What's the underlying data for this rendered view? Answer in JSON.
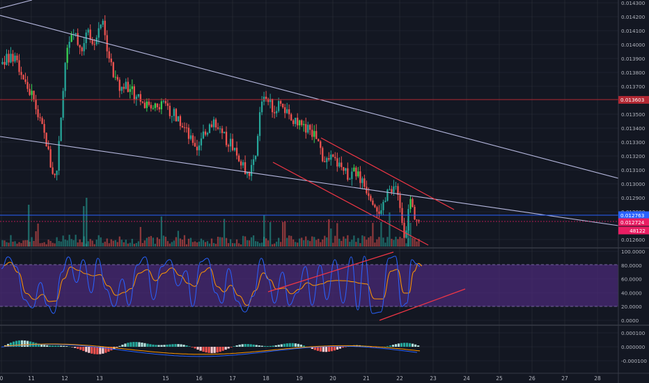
{
  "colors": {
    "background": "#131722",
    "grid": "#2a2e39",
    "up": "#26a69a",
    "up_bright": "#39d353",
    "down": "#ef5350",
    "trendline": "#b7b9e0",
    "channel": "#f23645",
    "resistance": "#b22833",
    "stoch_zone": "#4a2a77",
    "stoch_k": "#2962ff",
    "stoch_d": "#ff9800",
    "macd": "#2962ff",
    "signal": "#ff9800",
    "volume_up": "#26a69a",
    "volume_down": "#ef5350"
  },
  "chart_data": [
    {
      "type": "candlestick",
      "pane": "price",
      "y_ticks": [
        "0.014300",
        "0.014200",
        "0.014100",
        "0.014000",
        "0.013900",
        "0.013800",
        "0.013700",
        "0.013500",
        "0.013400",
        "0.013300",
        "0.013200",
        "0.013100",
        "0.013000",
        "0.012900",
        "0.012800",
        "0.012600"
      ],
      "ylim": [
        0.01255,
        0.01432
      ],
      "x_ticks": [
        "0",
        "11",
        "12",
        "13",
        "15",
        "16",
        "17",
        "18",
        "19",
        "20",
        "21",
        "22",
        "23",
        "24",
        "25",
        "26",
        "27",
        "28"
      ],
      "price_labels": [
        {
          "label": "0.013603",
          "value": 0.013603,
          "color": "#b22833",
          "style": "horizontal-line"
        },
        {
          "label": "0.012763",
          "value": 0.012763,
          "color": "#2962ff",
          "style": "horizontal-line"
        },
        {
          "label": "0.012724",
          "value": 0.012724,
          "color": "#e91e63",
          "style": "tag"
        },
        {
          "label": "48122",
          "value": 0.01262,
          "color": "#e91e63",
          "style": "tag"
        }
      ],
      "x_range": [
        0.0,
        28.9
      ],
      "last_price": 0.012724,
      "key_points": [
        {
          "x": 0.0,
          "y": 0.01386
        },
        {
          "x": 0.2,
          "y": 0.01391
        },
        {
          "x": 0.5,
          "y": 0.01387
        },
        {
          "x": 0.8,
          "y": 0.0137
        },
        {
          "x": 1.0,
          "y": 0.01362
        },
        {
          "x": 1.2,
          "y": 0.01345
        },
        {
          "x": 1.4,
          "y": 0.01331
        },
        {
          "x": 1.55,
          "y": 0.01312
        },
        {
          "x": 1.7,
          "y": 0.01303
        },
        {
          "x": 1.85,
          "y": 0.01342
        },
        {
          "x": 2.0,
          "y": 0.01393
        },
        {
          "x": 2.25,
          "y": 0.01409
        },
        {
          "x": 2.5,
          "y": 0.01396
        },
        {
          "x": 2.65,
          "y": 0.01413
        },
        {
          "x": 2.85,
          "y": 0.01402
        },
        {
          "x": 3.0,
          "y": 0.0141
        },
        {
          "x": 3.1,
          "y": 0.01417
        },
        {
          "x": 3.25,
          "y": 0.014
        },
        {
          "x": 3.45,
          "y": 0.01378
        },
        {
          "x": 3.65,
          "y": 0.01368
        },
        {
          "x": 3.85,
          "y": 0.01372
        },
        {
          "x": 4.1,
          "y": 0.01365
        },
        {
          "x": 4.3,
          "y": 0.01361
        },
        {
          "x": 4.6,
          "y": 0.01353
        },
        {
          "x": 4.85,
          "y": 0.01358
        },
        {
          "x": 5.2,
          "y": 0.01352
        },
        {
          "x": 5.5,
          "y": 0.01346
        },
        {
          "x": 5.8,
          "y": 0.01332
        },
        {
          "x": 6.0,
          "y": 0.0132
        },
        {
          "x": 6.25,
          "y": 0.01338
        },
        {
          "x": 6.5,
          "y": 0.01343
        },
        {
          "x": 6.8,
          "y": 0.01334
        },
        {
          "x": 7.1,
          "y": 0.01328
        },
        {
          "x": 7.4,
          "y": 0.01312
        },
        {
          "x": 7.6,
          "y": 0.01308
        },
        {
          "x": 7.8,
          "y": 0.01316
        },
        {
          "x": 7.95,
          "y": 0.01353
        },
        {
          "x": 8.05,
          "y": 0.01365
        },
        {
          "x": 8.2,
          "y": 0.01359
        },
        {
          "x": 8.4,
          "y": 0.01352
        },
        {
          "x": 8.6,
          "y": 0.01361
        },
        {
          "x": 8.8,
          "y": 0.01347
        },
        {
          "x": 9.1,
          "y": 0.01342
        },
        {
          "x": 9.4,
          "y": 0.0134
        },
        {
          "x": 9.7,
          "y": 0.01331
        },
        {
          "x": 9.9,
          "y": 0.01317
        },
        {
          "x": 10.2,
          "y": 0.01317
        },
        {
          "x": 10.5,
          "y": 0.0131
        },
        {
          "x": 10.7,
          "y": 0.01305
        },
        {
          "x": 10.9,
          "y": 0.01309
        },
        {
          "x": 11.1,
          "y": 0.013
        },
        {
          "x": 11.3,
          "y": 0.01293
        },
        {
          "x": 11.5,
          "y": 0.01285
        },
        {
          "x": 11.65,
          "y": 0.01278
        },
        {
          "x": 11.8,
          "y": 0.0129
        },
        {
          "x": 11.95,
          "y": 0.01299
        },
        {
          "x": 12.1,
          "y": 0.01294
        },
        {
          "x": 12.25,
          "y": 0.01283
        },
        {
          "x": 12.35,
          "y": 0.01264
        },
        {
          "x": 12.45,
          "y": 0.01274
        },
        {
          "x": 12.55,
          "y": 0.01286
        },
        {
          "x": 12.7,
          "y": 0.01276
        },
        {
          "x": 12.8,
          "y": 0.01272
        }
      ]
    },
    {
      "type": "bar",
      "pane": "volume",
      "overlay": "price",
      "series": [
        {
          "name": "",
          "values": []
        }
      ]
    },
    {
      "type": "line",
      "pane": "stochastic",
      "y_ticks": [
        "100.0000",
        "80.0000",
        "60.0000",
        "40.0000",
        "20.0000",
        "0.0000"
      ],
      "ylim": [
        0,
        100
      ],
      "zone": [
        20,
        80
      ],
      "series": [
        {
          "name": "",
          "key_points": [
            {
              "x": 0.0,
              "y": 75
            },
            {
              "x": 0.2,
              "y": 92
            },
            {
              "x": 0.45,
              "y": 78
            },
            {
              "x": 0.7,
              "y": 30
            },
            {
              "x": 0.95,
              "y": 18
            },
            {
              "x": 1.2,
              "y": 55
            },
            {
              "x": 1.4,
              "y": 22
            },
            {
              "x": 1.6,
              "y": 10
            },
            {
              "x": 1.85,
              "y": 70
            },
            {
              "x": 2.05,
              "y": 92
            },
            {
              "x": 2.3,
              "y": 55
            },
            {
              "x": 2.5,
              "y": 88
            },
            {
              "x": 2.75,
              "y": 40
            },
            {
              "x": 2.95,
              "y": 90
            },
            {
              "x": 3.2,
              "y": 45
            },
            {
              "x": 3.45,
              "y": 20
            },
            {
              "x": 3.7,
              "y": 60
            },
            {
              "x": 3.9,
              "y": 22
            },
            {
              "x": 4.15,
              "y": 80
            },
            {
              "x": 4.4,
              "y": 92
            },
            {
              "x": 4.65,
              "y": 30
            },
            {
              "x": 4.9,
              "y": 78
            },
            {
              "x": 5.15,
              "y": 88
            },
            {
              "x": 5.4,
              "y": 50
            },
            {
              "x": 5.65,
              "y": 72
            },
            {
              "x": 5.85,
              "y": 20
            },
            {
              "x": 6.1,
              "y": 85
            },
            {
              "x": 6.3,
              "y": 90
            },
            {
              "x": 6.55,
              "y": 40
            },
            {
              "x": 6.75,
              "y": 25
            },
            {
              "x": 6.95,
              "y": 75
            },
            {
              "x": 7.2,
              "y": 28
            },
            {
              "x": 7.45,
              "y": 12
            },
            {
              "x": 7.7,
              "y": 35
            },
            {
              "x": 7.95,
              "y": 90
            },
            {
              "x": 8.15,
              "y": 60
            },
            {
              "x": 8.35,
              "y": 25
            },
            {
              "x": 8.6,
              "y": 70
            },
            {
              "x": 8.8,
              "y": 22
            },
            {
              "x": 9.05,
              "y": 40
            },
            {
              "x": 9.3,
              "y": 78
            },
            {
              "x": 9.5,
              "y": 22
            },
            {
              "x": 9.75,
              "y": 80
            },
            {
              "x": 9.95,
              "y": 30
            },
            {
              "x": 10.2,
              "y": 88
            },
            {
              "x": 10.45,
              "y": 25
            },
            {
              "x": 10.7,
              "y": 92
            },
            {
              "x": 10.9,
              "y": 15
            },
            {
              "x": 11.1,
              "y": 93
            },
            {
              "x": 11.35,
              "y": 10
            },
            {
              "x": 11.6,
              "y": 12
            },
            {
              "x": 11.85,
              "y": 90
            },
            {
              "x": 12.05,
              "y": 93
            },
            {
              "x": 12.25,
              "y": 20
            },
            {
              "x": 12.4,
              "y": 25
            },
            {
              "x": 12.55,
              "y": 88
            },
            {
              "x": 12.7,
              "y": 82
            },
            {
              "x": 12.8,
              "y": 78
            }
          ]
        }
      ]
    },
    {
      "type": "bar",
      "pane": "macd",
      "y_ticks": [
        "0.000100",
        "0.000000",
        "-0.000100"
      ],
      "ylim": [
        -0.00013,
        0.00013
      ]
    }
  ]
}
